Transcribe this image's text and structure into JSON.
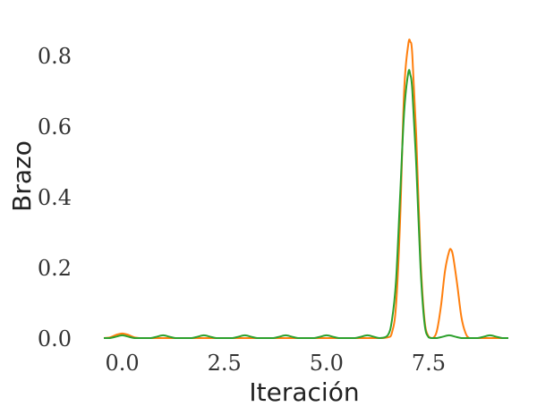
{
  "chart_data": {
    "type": "line",
    "title": "",
    "xlabel": "Iteración",
    "ylabel": "Brazo",
    "xlim": [
      -0.45,
      9.45
    ],
    "ylim": [
      0,
      0.85
    ],
    "xticks": [
      0.0,
      2.5,
      5.0,
      7.5
    ],
    "xtick_labels": [
      "0.0",
      "2.5",
      "5.0",
      "7.5"
    ],
    "yticks": [
      0.0,
      0.2,
      0.4,
      0.6,
      0.8
    ],
    "ytick_labels": [
      "0.0",
      "0.2",
      "0.4",
      "0.6",
      "0.8"
    ],
    "grid": false,
    "legend": "none",
    "series": [
      {
        "color": "#ff7f0e",
        "x": [
          -0.45,
          -0.3,
          -0.15,
          0.0,
          0.15,
          0.3,
          0.45,
          0.6,
          0.8,
          1.0,
          1.5,
          2.0,
          2.5,
          3.0,
          3.5,
          4.0,
          4.5,
          5.0,
          5.5,
          6.0,
          6.3,
          6.5,
          6.6,
          6.7,
          6.8,
          6.9,
          7.0,
          7.05,
          7.1,
          7.2,
          7.3,
          7.4,
          7.5,
          7.6,
          7.7,
          7.8,
          7.9,
          8.0,
          8.05,
          8.1,
          8.2,
          8.3,
          8.4,
          8.5,
          8.7,
          9.0,
          9.45
        ],
        "y": [
          0.0,
          0.002,
          0.009,
          0.013,
          0.009,
          0.002,
          0.0,
          0.0,
          0.0,
          0.0,
          0.0,
          0.0,
          0.0,
          0.0,
          0.0,
          0.0,
          0.0,
          0.0,
          0.0,
          0.0,
          0.0,
          0.002,
          0.015,
          0.09,
          0.33,
          0.7,
          0.83,
          0.838,
          0.8,
          0.56,
          0.23,
          0.05,
          0.004,
          0.0,
          0.02,
          0.09,
          0.19,
          0.245,
          0.25,
          0.23,
          0.15,
          0.06,
          0.015,
          0.0,
          0.0,
          0.0,
          0.0
        ]
      },
      {
        "color": "#2ca02c",
        "x": [
          -0.45,
          -0.3,
          -0.15,
          0.0,
          0.15,
          0.3,
          0.5,
          0.7,
          0.85,
          1.0,
          1.15,
          1.3,
          1.5,
          1.7,
          1.85,
          2.0,
          2.15,
          2.3,
          2.5,
          2.7,
          2.85,
          3.0,
          3.15,
          3.3,
          3.5,
          3.7,
          3.85,
          4.0,
          4.15,
          4.3,
          4.5,
          4.7,
          4.85,
          5.0,
          5.15,
          5.3,
          5.5,
          5.7,
          5.85,
          6.0,
          6.15,
          6.3,
          6.5,
          6.6,
          6.7,
          6.8,
          6.9,
          7.0,
          7.05,
          7.1,
          7.2,
          7.3,
          7.4,
          7.5,
          7.6,
          7.7,
          7.85,
          8.0,
          8.15,
          8.3,
          8.5,
          8.7,
          8.85,
          9.0,
          9.15,
          9.3,
          9.45
        ],
        "y": [
          0.0,
          0.0,
          0.004,
          0.008,
          0.004,
          0.0,
          0.0,
          0.0,
          0.004,
          0.008,
          0.004,
          0.0,
          0.0,
          0.0,
          0.004,
          0.008,
          0.004,
          0.0,
          0.0,
          0.0,
          0.004,
          0.008,
          0.004,
          0.0,
          0.0,
          0.0,
          0.004,
          0.008,
          0.004,
          0.0,
          0.0,
          0.0,
          0.004,
          0.008,
          0.004,
          0.0,
          0.0,
          0.0,
          0.004,
          0.008,
          0.004,
          0.0,
          0.008,
          0.05,
          0.16,
          0.4,
          0.64,
          0.75,
          0.745,
          0.7,
          0.48,
          0.2,
          0.04,
          0.002,
          0.0,
          0.0,
          0.004,
          0.008,
          0.004,
          0.0,
          0.0,
          0.0,
          0.004,
          0.008,
          0.004,
          0.0,
          0.0
        ]
      }
    ]
  }
}
